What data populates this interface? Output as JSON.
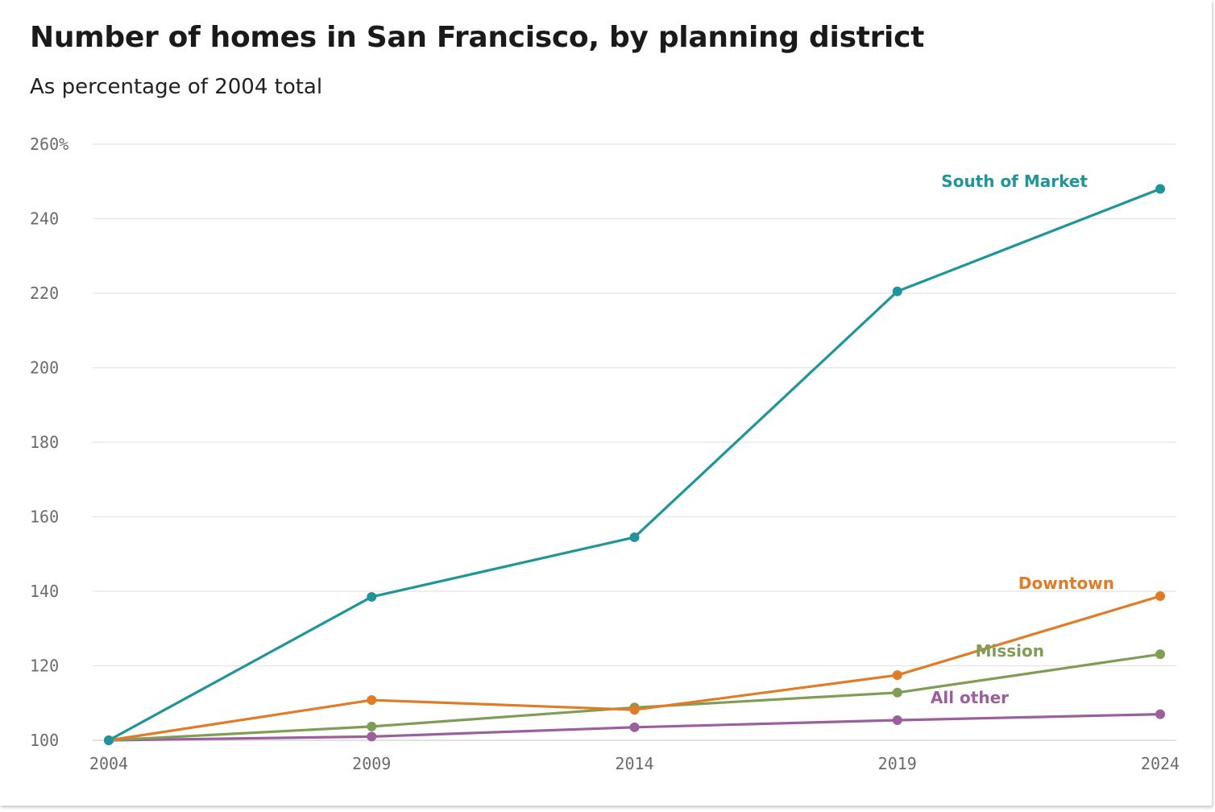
{
  "chart_data": {
    "type": "line",
    "title": "Number of homes in San Francisco, by planning district",
    "subtitle": "As percentage of 2004 total",
    "x": [
      "2004",
      "2009",
      "2014",
      "2019",
      "2024"
    ],
    "y_ticks": [
      100,
      120,
      140,
      160,
      180,
      200,
      220,
      240,
      260
    ],
    "y_tick_labels": [
      "100",
      "120",
      "140",
      "160",
      "180",
      "200",
      "220",
      "240",
      "260%"
    ],
    "ylim": [
      100,
      260
    ],
    "grid": "horizontal",
    "legend": "inline labels at line ends",
    "series": [
      {
        "name": "South of Market",
        "color": "#1f9599",
        "values": [
          100,
          138.5,
          154.5,
          220.5,
          248
        ]
      },
      {
        "name": "Downtown",
        "color": "#e07b26",
        "values": [
          100,
          110.8,
          108.2,
          117.5,
          138.7
        ]
      },
      {
        "name": "Mission",
        "color": "#7f9d55",
        "values": [
          100,
          103.7,
          108.8,
          112.8,
          123.1
        ]
      },
      {
        "name": "All other",
        "color": "#9a5f9c",
        "values": [
          100,
          101,
          103.5,
          105.4,
          107
        ]
      }
    ]
  }
}
